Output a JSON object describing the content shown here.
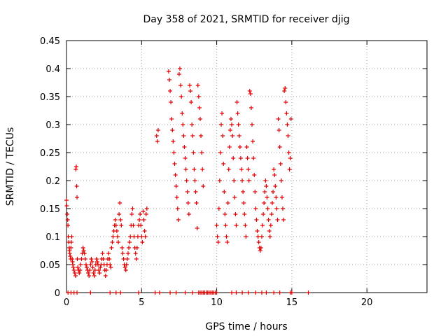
{
  "chart_data": {
    "type": "scatter",
    "title": "Day 358 of 2021, SRMTID for receiver djig",
    "xlabel": "GPS time / hours",
    "ylabel": "SRMTID / TECUs",
    "xlim": [
      0,
      24
    ],
    "ylim": [
      0,
      0.45
    ],
    "xticks": [
      0,
      5,
      10,
      15,
      20
    ],
    "xtick_labels": [
      "0",
      "5",
      "10",
      "15",
      "20"
    ],
    "yticks": [
      0,
      0.05,
      0.1,
      0.15,
      0.2,
      0.25,
      0.3,
      0.35,
      0.4,
      0.45
    ],
    "ytick_labels": [
      "0",
      "0.05",
      "0.1",
      "0.15",
      "0.2",
      "0.25",
      "0.3",
      "0.35",
      "0.4",
      "0.45"
    ],
    "grid": true,
    "marker": "plus",
    "marker_color": "#e00000",
    "series": [
      {
        "name": "SRMTID",
        "points": [
          [
            0.0,
            0.165
          ],
          [
            0.02,
            0.155
          ],
          [
            0.05,
            0.14
          ],
          [
            0.08,
            0.13
          ],
          [
            0.1,
            0.12
          ],
          [
            0.12,
            0.1
          ],
          [
            0.15,
            0.09
          ],
          [
            0.18,
            0.08
          ],
          [
            0.2,
            0.075
          ],
          [
            0.22,
            0.07
          ],
          [
            0.25,
            0.065
          ],
          [
            0.28,
            0.06
          ],
          [
            0.3,
            0.08
          ],
          [
            0.32,
            0.09
          ],
          [
            0.35,
            0.1
          ],
          [
            0.38,
            0.06
          ],
          [
            0.4,
            0.055
          ],
          [
            0.42,
            0.05
          ],
          [
            0.45,
            0.045
          ],
          [
            0.5,
            0.04
          ],
          [
            0.55,
            0.035
          ],
          [
            0.6,
            0.03
          ],
          [
            0.62,
            0.22
          ],
          [
            0.65,
            0.225
          ],
          [
            0.68,
            0.19
          ],
          [
            0.7,
            0.17
          ],
          [
            0.72,
            0.06
          ],
          [
            0.75,
            0.045
          ],
          [
            0.8,
            0.04
          ],
          [
            0.85,
            0.035
          ],
          [
            0.9,
            0.04
          ],
          [
            0.95,
            0.05
          ],
          [
            1.0,
            0.06
          ],
          [
            1.05,
            0.07
          ],
          [
            1.1,
            0.08
          ],
          [
            1.15,
            0.075
          ],
          [
            1.2,
            0.07
          ],
          [
            1.25,
            0.06
          ],
          [
            1.3,
            0.05
          ],
          [
            1.35,
            0.045
          ],
          [
            1.4,
            0.04
          ],
          [
            1.45,
            0.035
          ],
          [
            1.5,
            0.03
          ],
          [
            1.55,
            0.04
          ],
          [
            1.6,
            0.05
          ],
          [
            1.65,
            0.06
          ],
          [
            1.7,
            0.055
          ],
          [
            1.75,
            0.045
          ],
          [
            1.8,
            0.035
          ],
          [
            1.85,
            0.03
          ],
          [
            1.9,
            0.04
          ],
          [
            1.95,
            0.05
          ],
          [
            2.0,
            0.06
          ],
          [
            2.05,
            0.055
          ],
          [
            2.1,
            0.05
          ],
          [
            2.15,
            0.04
          ],
          [
            2.2,
            0.035
          ],
          [
            2.25,
            0.045
          ],
          [
            2.3,
            0.05
          ],
          [
            2.35,
            0.06
          ],
          [
            2.4,
            0.07
          ],
          [
            2.45,
            0.06
          ],
          [
            2.5,
            0.05
          ],
          [
            2.55,
            0.04
          ],
          [
            2.6,
            0.03
          ],
          [
            2.65,
            0.04
          ],
          [
            2.7,
            0.05
          ],
          [
            2.75,
            0.06
          ],
          [
            2.8,
            0.07
          ],
          [
            2.85,
            0.06
          ],
          [
            2.9,
            0.05
          ],
          [
            2.95,
            0.045
          ],
          [
            3.0,
            0.08
          ],
          [
            3.05,
            0.09
          ],
          [
            3.1,
            0.1
          ],
          [
            3.15,
            0.11
          ],
          [
            3.2,
            0.12
          ],
          [
            3.25,
            0.13
          ],
          [
            3.3,
            0.12
          ],
          [
            3.35,
            0.11
          ],
          [
            3.4,
            0.1
          ],
          [
            3.45,
            0.09
          ],
          [
            3.5,
            0.14
          ],
          [
            3.55,
            0.16
          ],
          [
            3.6,
            0.13
          ],
          [
            3.65,
            0.12
          ],
          [
            3.7,
            0.08
          ],
          [
            3.75,
            0.07
          ],
          [
            3.8,
            0.06
          ],
          [
            3.85,
            0.05
          ],
          [
            3.9,
            0.045
          ],
          [
            3.95,
            0.04
          ],
          [
            4.0,
            0.05
          ],
          [
            4.05,
            0.06
          ],
          [
            4.1,
            0.07
          ],
          [
            4.15,
            0.08
          ],
          [
            4.2,
            0.09
          ],
          [
            4.25,
            0.1
          ],
          [
            4.3,
            0.12
          ],
          [
            4.35,
            0.14
          ],
          [
            4.4,
            0.15
          ],
          [
            4.45,
            0.12
          ],
          [
            4.5,
            0.1
          ],
          [
            4.55,
            0.08
          ],
          [
            4.6,
            0.07
          ],
          [
            4.65,
            0.06
          ],
          [
            4.7,
            0.08
          ],
          [
            4.75,
            0.1
          ],
          [
            4.8,
            0.12
          ],
          [
            4.85,
            0.13
          ],
          [
            4.9,
            0.14
          ],
          [
            4.95,
            0.12
          ],
          [
            5.0,
            0.1
          ],
          [
            5.05,
            0.09
          ],
          [
            5.1,
            0.145
          ],
          [
            5.15,
            0.13
          ],
          [
            5.2,
            0.11
          ],
          [
            5.25,
            0.1
          ],
          [
            5.3,
            0.14
          ],
          [
            5.35,
            0.15
          ],
          [
            6.0,
            0.28
          ],
          [
            6.05,
            0.27
          ],
          [
            6.1,
            0.29
          ],
          [
            6.8,
            0.395
          ],
          [
            6.85,
            0.38
          ],
          [
            6.9,
            0.36
          ],
          [
            6.95,
            0.34
          ],
          [
            7.0,
            0.31
          ],
          [
            7.05,
            0.29
          ],
          [
            7.1,
            0.27
          ],
          [
            7.15,
            0.25
          ],
          [
            7.2,
            0.23
          ],
          [
            7.25,
            0.21
          ],
          [
            7.3,
            0.19
          ],
          [
            7.35,
            0.17
          ],
          [
            7.4,
            0.15
          ],
          [
            7.45,
            0.13
          ],
          [
            7.5,
            0.39
          ],
          [
            7.55,
            0.4
          ],
          [
            7.6,
            0.37
          ],
          [
            7.65,
            0.35
          ],
          [
            7.7,
            0.32
          ],
          [
            7.75,
            0.3
          ],
          [
            7.8,
            0.28
          ],
          [
            7.85,
            0.26
          ],
          [
            7.9,
            0.24
          ],
          [
            7.95,
            0.22
          ],
          [
            8.0,
            0.2
          ],
          [
            8.05,
            0.18
          ],
          [
            8.1,
            0.16
          ],
          [
            8.15,
            0.14
          ],
          [
            8.2,
            0.37
          ],
          [
            8.25,
            0.36
          ],
          [
            8.3,
            0.34
          ],
          [
            8.35,
            0.3
          ],
          [
            8.4,
            0.28
          ],
          [
            8.45,
            0.25
          ],
          [
            8.5,
            0.22
          ],
          [
            8.55,
            0.2
          ],
          [
            8.6,
            0.18
          ],
          [
            8.65,
            0.16
          ],
          [
            8.7,
            0.115
          ],
          [
            8.75,
            0.37
          ],
          [
            8.8,
            0.35
          ],
          [
            8.85,
            0.33
          ],
          [
            8.9,
            0.31
          ],
          [
            8.95,
            0.28
          ],
          [
            9.0,
            0.25
          ],
          [
            9.05,
            0.22
          ],
          [
            9.1,
            0.19
          ],
          [
            10.0,
            0.12
          ],
          [
            10.05,
            0.1
          ],
          [
            10.1,
            0.09
          ],
          [
            10.15,
            0.15
          ],
          [
            10.2,
            0.2
          ],
          [
            10.25,
            0.25
          ],
          [
            10.3,
            0.3
          ],
          [
            10.35,
            0.32
          ],
          [
            10.4,
            0.28
          ],
          [
            10.45,
            0.23
          ],
          [
            10.5,
            0.18
          ],
          [
            10.55,
            0.14
          ],
          [
            10.6,
            0.12
          ],
          [
            10.65,
            0.1
          ],
          [
            10.7,
            0.09
          ],
          [
            10.75,
            0.16
          ],
          [
            10.8,
            0.22
          ],
          [
            10.85,
            0.26
          ],
          [
            10.9,
            0.29
          ],
          [
            10.95,
            0.31
          ],
          [
            11.0,
            0.3
          ],
          [
            11.05,
            0.28
          ],
          [
            11.1,
            0.24
          ],
          [
            11.15,
            0.2
          ],
          [
            11.2,
            0.17
          ],
          [
            11.25,
            0.14
          ],
          [
            11.3,
            0.12
          ],
          [
            11.35,
            0.34
          ],
          [
            11.4,
            0.32
          ],
          [
            11.45,
            0.3
          ],
          [
            11.5,
            0.28
          ],
          [
            11.55,
            0.26
          ],
          [
            11.6,
            0.24
          ],
          [
            11.65,
            0.22
          ],
          [
            11.7,
            0.2
          ],
          [
            11.75,
            0.18
          ],
          [
            11.8,
            0.16
          ],
          [
            11.85,
            0.14
          ],
          [
            11.9,
            0.12
          ],
          [
            11.95,
            0.1
          ],
          [
            12.0,
            0.26
          ],
          [
            12.05,
            0.24
          ],
          [
            12.1,
            0.22
          ],
          [
            12.15,
            0.2
          ],
          [
            12.2,
            0.36
          ],
          [
            12.25,
            0.355
          ],
          [
            12.3,
            0.33
          ],
          [
            12.35,
            0.3
          ],
          [
            12.4,
            0.27
          ],
          [
            12.45,
            0.24
          ],
          [
            12.5,
            0.21
          ],
          [
            12.55,
            0.18
          ],
          [
            12.6,
            0.15
          ],
          [
            12.65,
            0.13
          ],
          [
            12.7,
            0.11
          ],
          [
            12.75,
            0.1
          ],
          [
            12.8,
            0.09
          ],
          [
            12.85,
            0.08
          ],
          [
            12.9,
            0.075
          ],
          [
            12.95,
            0.08
          ],
          [
            13.0,
            0.1
          ],
          [
            13.05,
            0.12
          ],
          [
            13.1,
            0.14
          ],
          [
            13.15,
            0.16
          ],
          [
            13.2,
            0.18
          ],
          [
            13.25,
            0.2
          ],
          [
            13.3,
            0.19
          ],
          [
            13.35,
            0.17
          ],
          [
            13.4,
            0.15
          ],
          [
            13.45,
            0.13
          ],
          [
            13.5,
            0.11
          ],
          [
            13.55,
            0.1
          ],
          [
            13.6,
            0.12
          ],
          [
            13.65,
            0.14
          ],
          [
            13.7,
            0.16
          ],
          [
            13.75,
            0.18
          ],
          [
            13.8,
            0.22
          ],
          [
            13.85,
            0.21
          ],
          [
            13.9,
            0.19
          ],
          [
            13.95,
            0.17
          ],
          [
            14.0,
            0.15
          ],
          [
            14.05,
            0.13
          ],
          [
            14.1,
            0.31
          ],
          [
            14.15,
            0.29
          ],
          [
            14.2,
            0.26
          ],
          [
            14.25,
            0.23
          ],
          [
            14.3,
            0.2
          ],
          [
            14.35,
            0.17
          ],
          [
            14.4,
            0.15
          ],
          [
            14.45,
            0.13
          ],
          [
            14.5,
            0.36
          ],
          [
            14.55,
            0.365
          ],
          [
            14.6,
            0.34
          ],
          [
            14.65,
            0.32
          ],
          [
            14.7,
            0.3
          ],
          [
            14.75,
            0.28
          ],
          [
            14.8,
            0.25
          ],
          [
            14.85,
            0.22
          ],
          [
            14.9,
            0.24
          ],
          [
            14.95,
            0.31
          ],
          [
            0.1,
            0.0
          ],
          [
            0.3,
            0.0
          ],
          [
            0.5,
            0.0
          ],
          [
            0.7,
            0.0
          ],
          [
            1.6,
            0.0
          ],
          [
            2.9,
            0.0
          ],
          [
            3.3,
            0.0
          ],
          [
            3.6,
            0.0
          ],
          [
            4.8,
            0.0
          ],
          [
            5.9,
            0.0
          ],
          [
            6.2,
            0.0
          ],
          [
            6.9,
            0.0
          ],
          [
            7.3,
            0.0
          ],
          [
            7.9,
            0.0
          ],
          [
            8.4,
            0.0
          ],
          [
            8.8,
            0.0
          ],
          [
            8.9,
            0.0
          ],
          [
            9.0,
            0.0
          ],
          [
            9.1,
            0.0
          ],
          [
            9.2,
            0.0
          ],
          [
            9.3,
            0.0
          ],
          [
            9.4,
            0.0
          ],
          [
            9.5,
            0.0
          ],
          [
            9.6,
            0.0
          ],
          [
            9.7,
            0.0
          ],
          [
            9.8,
            0.0
          ],
          [
            9.9,
            0.0
          ],
          [
            10.0,
            0.0
          ],
          [
            11.0,
            0.0
          ],
          [
            11.3,
            0.0
          ],
          [
            11.7,
            0.0
          ],
          [
            12.1,
            0.0
          ],
          [
            12.6,
            0.0
          ],
          [
            13.0,
            0.0
          ],
          [
            13.3,
            0.0
          ],
          [
            13.8,
            0.0
          ],
          [
            14.2,
            0.0
          ],
          [
            14.9,
            0.0
          ],
          [
            15.0,
            0.0
          ],
          [
            16.1,
            0.0
          ]
        ]
      }
    ]
  }
}
